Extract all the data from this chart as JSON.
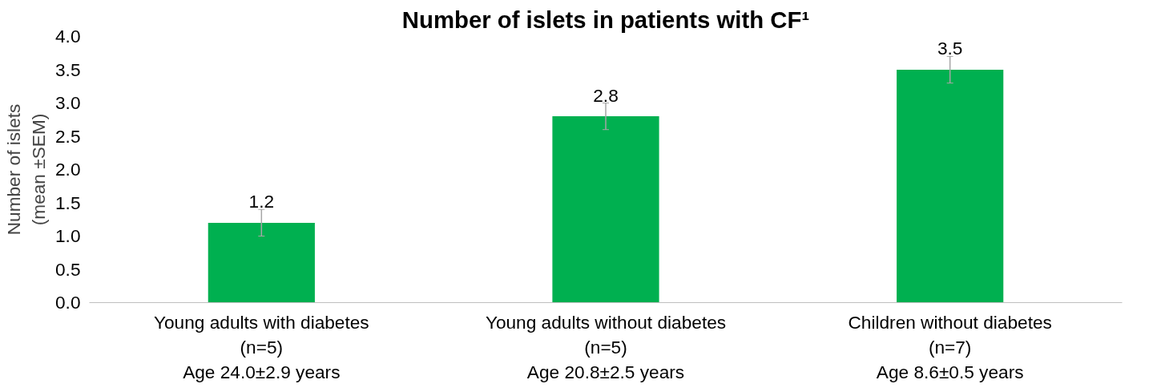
{
  "chart_data": {
    "type": "bar",
    "title": "Number of islets in patients with CF¹",
    "ylabel": "Number of islets\n(mean ±SEM)",
    "categories": [
      "Young adults with diabetes\n(n=5)\nAge 24.0±2.9 years",
      "Young adults without diabetes\n(n=5)\nAge 20.8±2.5 years",
      "Children without diabetes\n(n=7)\nAge 8.6±0.5 years"
    ],
    "values": [
      1.2,
      2.8,
      3.5
    ],
    "errors": [
      0.2,
      0.2,
      0.2
    ],
    "color": "#00b050",
    "data_labels": true,
    "ylim": [
      0,
      4
    ],
    "yticks": [
      {
        "value": 0,
        "label": "0.0"
      },
      {
        "value": 0.5,
        "label": "0.5"
      },
      {
        "value": 1,
        "label": "1.0"
      },
      {
        "value": 1.5,
        "label": "1.5"
      },
      {
        "value": 2,
        "label": "2.0"
      },
      {
        "value": 2.5,
        "label": "2.5"
      },
      {
        "value": 3,
        "label": "3.0"
      },
      {
        "value": 3.5,
        "label": "3.5"
      },
      {
        "value": 4,
        "label": "4.0"
      }
    ],
    "grid": false
  }
}
